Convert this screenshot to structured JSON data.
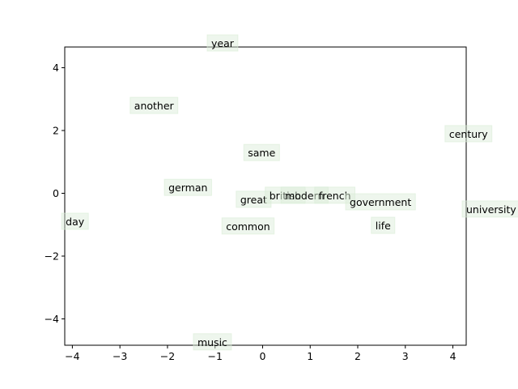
{
  "chart_data": {
    "type": "scatter",
    "points": [
      {
        "label": "year",
        "x": -1.08,
        "y": 4.66
      },
      {
        "label": "another",
        "x": -2.7,
        "y": 2.67
      },
      {
        "label": "century",
        "x": 3.92,
        "y": 1.77
      },
      {
        "label": "same",
        "x": -0.31,
        "y": 1.17
      },
      {
        "label": "german",
        "x": -1.98,
        "y": 0.06
      },
      {
        "label": "great",
        "x": -0.47,
        "y": -0.32
      },
      {
        "label": "british",
        "x": 0.14,
        "y": -0.19
      },
      {
        "label": "modern",
        "x": 0.47,
        "y": -0.19
      },
      {
        "label": "french",
        "x": 1.18,
        "y": -0.19
      },
      {
        "label": "government",
        "x": 1.83,
        "y": -0.4
      },
      {
        "label": "life",
        "x": 2.37,
        "y": -1.15
      },
      {
        "label": "university",
        "x": 4.28,
        "y": -0.63
      },
      {
        "label": "day",
        "x": -4.14,
        "y": -1.02
      },
      {
        "label": "common",
        "x": -0.77,
        "y": -1.17
      },
      {
        "label": "music",
        "x": -1.37,
        "y": -4.86
      }
    ],
    "box_color": "#d9ecd6",
    "xlim": [
      -4.16,
      4.28
    ],
    "ylim": [
      -4.84,
      4.66
    ],
    "xticks": [
      {
        "value": -4,
        "label": "−4"
      },
      {
        "value": -3,
        "label": "−3"
      },
      {
        "value": -2,
        "label": "−2"
      },
      {
        "value": -1,
        "label": "−1"
      },
      0,
      1,
      2,
      3,
      4
    ],
    "yticks": [
      {
        "value": -4,
        "label": "−4"
      },
      {
        "value": -2,
        "label": "−2"
      },
      0,
      2,
      4
    ]
  }
}
